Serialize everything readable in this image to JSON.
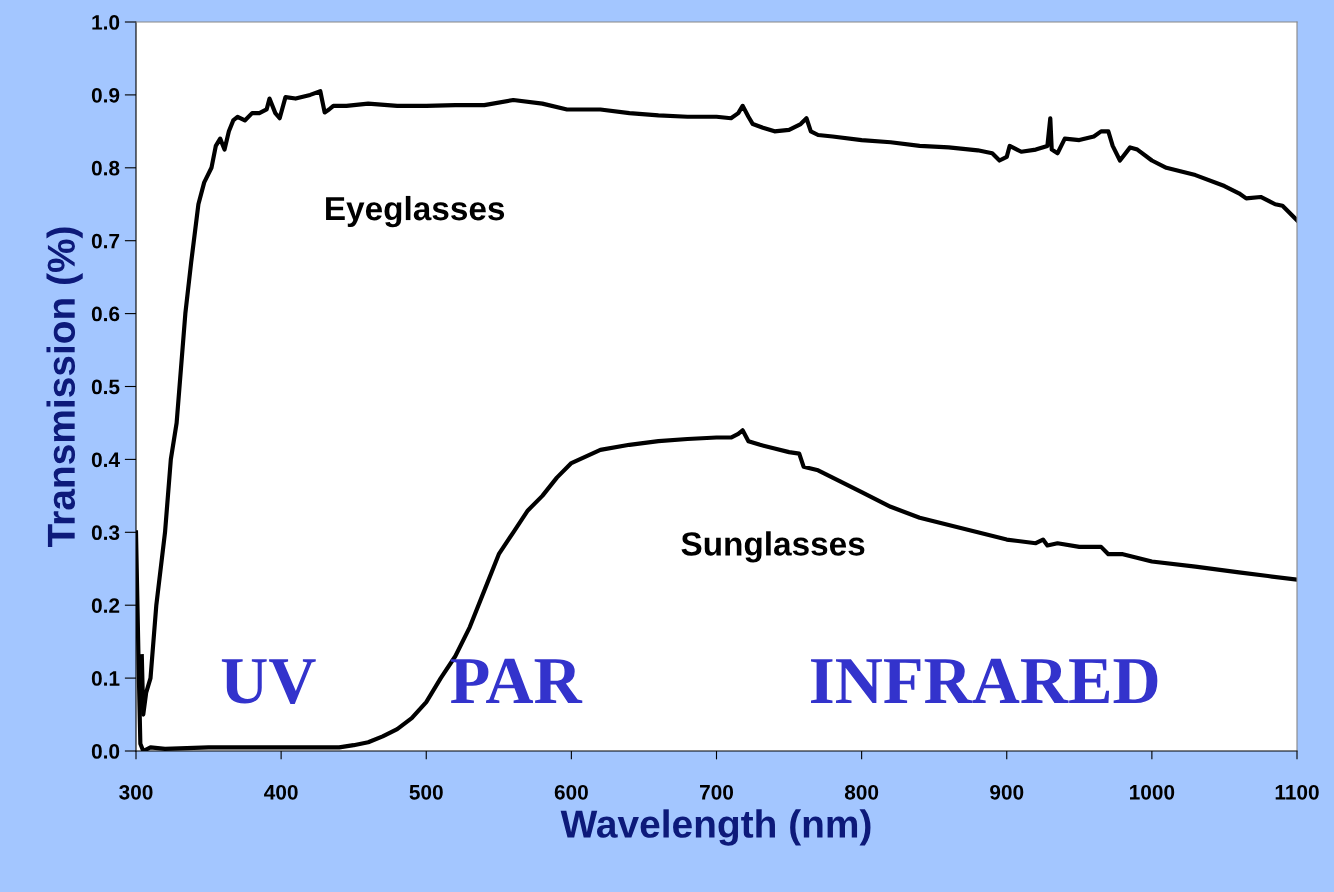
{
  "chart_data": {
    "type": "line",
    "xlabel": "Wavelength (nm)",
    "ylabel": "Transmission (%)",
    "xlim": [
      300,
      1100
    ],
    "xticks": [
      300,
      400,
      500,
      600,
      700,
      800,
      900,
      1000,
      1100
    ],
    "ylim": [
      0,
      1.0
    ],
    "yticks": [
      {
        "value": 0,
        "label": "0.0"
      },
      0.1,
      0.2,
      0.3,
      0.4,
      0.5,
      0.6,
      0.7,
      0.8,
      0.9,
      {
        "value": 1.0,
        "label": "1.0"
      }
    ],
    "grid": false,
    "legend": false,
    "marker": "none",
    "line_style": "solid",
    "series": [
      {
        "name": "Eyeglasses",
        "color": "#000000",
        "x": [
          304,
          305,
          307,
          310,
          314,
          320,
          324,
          328,
          334,
          338,
          343,
          347,
          352,
          355,
          358,
          361,
          364,
          367,
          370,
          375,
          380,
          385,
          390,
          392,
          396,
          399,
          403,
          410,
          420,
          427,
          430,
          433,
          436,
          445,
          460,
          480,
          500,
          520,
          540,
          560,
          580,
          597,
          620,
          640,
          660,
          680,
          700,
          710,
          715,
          718,
          722,
          725,
          732,
          740,
          750,
          758,
          762,
          765,
          770,
          780,
          800,
          820,
          840,
          860,
          880,
          890,
          895,
          900,
          902,
          910,
          920,
          928,
          930,
          931,
          935,
          940,
          950,
          960,
          965,
          970,
          973,
          978,
          985,
          990,
          1000,
          1010,
          1030,
          1050,
          1060,
          1065,
          1075,
          1085,
          1090,
          1100
        ],
        "values": [
          0.13,
          0.05,
          0.08,
          0.1,
          0.2,
          0.3,
          0.4,
          0.45,
          0.6,
          0.67,
          0.75,
          0.78,
          0.8,
          0.83,
          0.84,
          0.825,
          0.85,
          0.865,
          0.87,
          0.865,
          0.875,
          0.875,
          0.88,
          0.895,
          0.875,
          0.868,
          0.897,
          0.895,
          0.9,
          0.905,
          0.876,
          0.88,
          0.885,
          0.885,
          0.888,
          0.885,
          0.885,
          0.886,
          0.886,
          0.893,
          0.888,
          0.88,
          0.88,
          0.875,
          0.872,
          0.87,
          0.87,
          0.868,
          0.875,
          0.885,
          0.87,
          0.86,
          0.855,
          0.85,
          0.852,
          0.86,
          0.868,
          0.85,
          0.845,
          0.843,
          0.838,
          0.835,
          0.83,
          0.828,
          0.824,
          0.82,
          0.81,
          0.815,
          0.83,
          0.822,
          0.825,
          0.83,
          0.868,
          0.825,
          0.82,
          0.84,
          0.838,
          0.843,
          0.85,
          0.85,
          0.83,
          0.81,
          0.828,
          0.825,
          0.81,
          0.8,
          0.79,
          0.775,
          0.765,
          0.758,
          0.76,
          0.75,
          0.748,
          0.728
        ]
      },
      {
        "name": "Sunglasses",
        "color": "#000000",
        "x": [
          300,
          302,
          303,
          305,
          310,
          320,
          350,
          400,
          440,
          450,
          460,
          470,
          480,
          490,
          500,
          510,
          520,
          530,
          540,
          550,
          560,
          570,
          580,
          590,
          600,
          620,
          640,
          660,
          680,
          700,
          710,
          715,
          718,
          722,
          730,
          740,
          750,
          757,
          760,
          770,
          780,
          800,
          820,
          840,
          860,
          880,
          900,
          920,
          925,
          928,
          935,
          950,
          965,
          970,
          980,
          1000,
          1030,
          1060,
          1080,
          1100
        ],
        "values": [
          0.3,
          0.1,
          0.01,
          0.0,
          0.005,
          0.003,
          0.005,
          0.005,
          0.005,
          0.008,
          0.012,
          0.02,
          0.03,
          0.045,
          0.067,
          0.1,
          0.13,
          0.17,
          0.22,
          0.27,
          0.3,
          0.33,
          0.35,
          0.375,
          0.395,
          0.413,
          0.42,
          0.425,
          0.428,
          0.43,
          0.43,
          0.435,
          0.44,
          0.425,
          0.42,
          0.415,
          0.41,
          0.408,
          0.39,
          0.385,
          0.375,
          0.355,
          0.335,
          0.32,
          0.31,
          0.3,
          0.29,
          0.285,
          0.29,
          0.282,
          0.285,
          0.28,
          0.28,
          0.27,
          0.27,
          0.26,
          0.253,
          0.245,
          0.24,
          0.235
        ]
      }
    ],
    "annotations": [
      "UV",
      "PAR",
      "INFRARED"
    ]
  }
}
